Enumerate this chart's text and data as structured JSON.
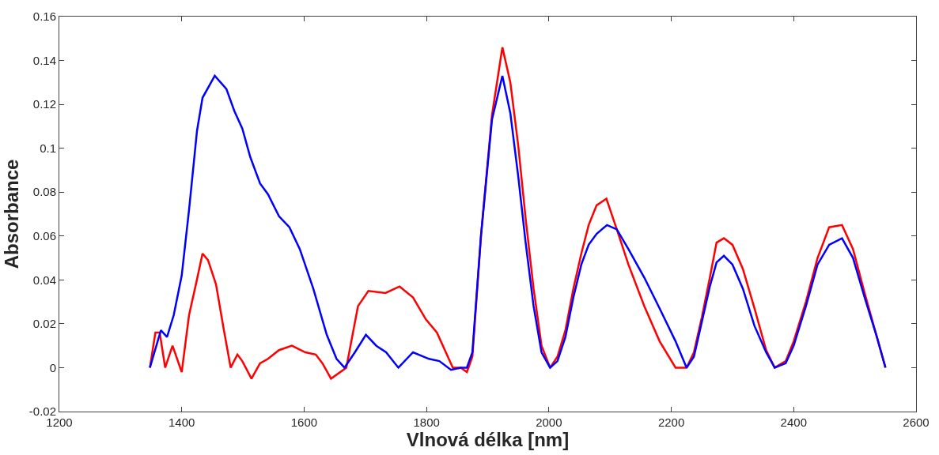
{
  "chart_data": {
    "type": "line",
    "xlabel": "Vlnová délka [nm]",
    "ylabel": "Absorbance",
    "xlim": [
      1200,
      2600
    ],
    "xticks": [
      1200,
      1400,
      1600,
      1800,
      2000,
      2200,
      2400,
      2600
    ],
    "ylim": [
      -0.02,
      0.16
    ],
    "yticks": [
      -0.02,
      0,
      0.02,
      0.04,
      0.06,
      0.08,
      0.1,
      0.12,
      0.14,
      0.16
    ],
    "line_style": "solid",
    "marker": "none",
    "series": [
      {
        "color": "#ff0000",
        "x": [
          1348,
          1357,
          1364,
          1373,
          1385,
          1400,
          1412,
          1424,
          1434,
          1443,
          1456,
          1469,
          1480,
          1491,
          1499,
          1514,
          1528,
          1541,
          1559,
          1580,
          1602,
          1619,
          1630,
          1644,
          1669,
          1688,
          1705,
          1733,
          1756,
          1778,
          1799,
          1817,
          1843,
          1856,
          1866,
          1875,
          1889,
          1907,
          1924,
          1937,
          1950,
          1962,
          1975,
          1988,
          2002,
          2014,
          2027,
          2040,
          2053,
          2065,
          2078,
          2094,
          2111,
          2130,
          2156,
          2181,
          2207,
          2225,
          2237,
          2250,
          2263,
          2274,
          2286,
          2300,
          2317,
          2336,
          2355,
          2369,
          2387,
          2400,
          2420,
          2439,
          2458,
          2479,
          2497,
          2516,
          2536,
          2550
        ],
        "values": [
          0,
          0.016,
          0.016,
          0,
          0.01,
          -0.002,
          0.024,
          0.039,
          0.052,
          0.049,
          0.038,
          0.017,
          0,
          0.006,
          0.003,
          -0.005,
          0.002,
          0.004,
          0.008,
          0.01,
          0.007,
          0.006,
          0.002,
          -0.005,
          0,
          0.028,
          0.035,
          0.034,
          0.037,
          0.032,
          0.022,
          0.016,
          0,
          0,
          -0.002,
          0.005,
          0.06,
          0.115,
          0.146,
          0.13,
          0.101,
          0.068,
          0.036,
          0.01,
          0,
          0.005,
          0.017,
          0.036,
          0.052,
          0.065,
          0.074,
          0.077,
          0.063,
          0.047,
          0.028,
          0.012,
          0,
          0,
          0.007,
          0.023,
          0.041,
          0.057,
          0.059,
          0.056,
          0.045,
          0.027,
          0.008,
          0,
          0.003,
          0.012,
          0.03,
          0.05,
          0.064,
          0.065,
          0.054,
          0.034,
          0.014,
          0
        ]
      },
      {
        "color": "#0000ff",
        "x": [
          1348,
          1366,
          1376,
          1387,
          1400,
          1412,
          1425,
          1434,
          1454,
          1473,
          1486,
          1499,
          1512,
          1528,
          1541,
          1559,
          1576,
          1593,
          1615,
          1637,
          1653,
          1666,
          1683,
          1701,
          1718,
          1734,
          1754,
          1778,
          1804,
          1821,
          1840,
          1856,
          1866,
          1875,
          1889,
          1907,
          1924,
          1937,
          1950,
          1962,
          1975,
          1988,
          2002,
          2014,
          2027,
          2040,
          2053,
          2065,
          2078,
          2095,
          2111,
          2130,
          2156,
          2181,
          2207,
          2225,
          2237,
          2250,
          2263,
          2274,
          2286,
          2300,
          2317,
          2336,
          2355,
          2369,
          2387,
          2400,
          2420,
          2439,
          2458,
          2479,
          2497,
          2516,
          2536,
          2550
        ],
        "values": [
          0,
          0.017,
          0.014,
          0.024,
          0.042,
          0.072,
          0.108,
          0.123,
          0.133,
          0.127,
          0.117,
          0.109,
          0.096,
          0.084,
          0.079,
          0.069,
          0.064,
          0.054,
          0.036,
          0.015,
          0.004,
          0,
          0.007,
          0.015,
          0.01,
          0.007,
          0,
          0.007,
          0.004,
          0.003,
          -0.001,
          0,
          0,
          0.007,
          0.06,
          0.113,
          0.133,
          0.116,
          0.087,
          0.057,
          0.028,
          0.007,
          0,
          0.003,
          0.014,
          0.032,
          0.047,
          0.056,
          0.061,
          0.065,
          0.063,
          0.054,
          0.041,
          0.027,
          0.012,
          0,
          0.005,
          0.021,
          0.037,
          0.048,
          0.051,
          0.047,
          0.036,
          0.019,
          0.007,
          0,
          0.002,
          0.01,
          0.028,
          0.047,
          0.056,
          0.059,
          0.05,
          0.032,
          0.014,
          0
        ]
      }
    ]
  }
}
